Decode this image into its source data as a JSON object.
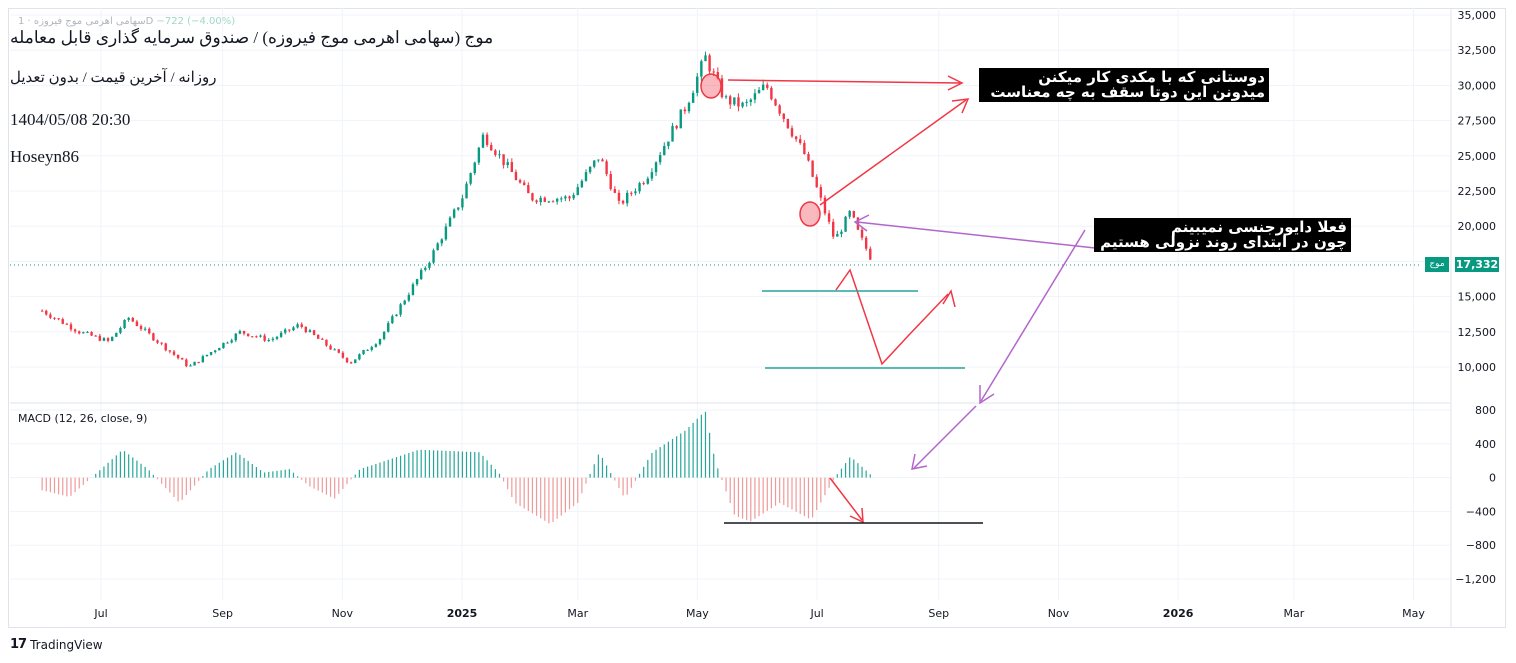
{
  "header": {
    "title": "موج (سهامی اهرمی موج فیروزه) / صندوق سرمایه گذاری قابل معامله",
    "subtitle": "روزانه / آخرین قیمت / بدون تعدیل",
    "datetime": "1404/05/08 20:30",
    "author": "Hoseyn86",
    "ghost_symbol": "سهامی اهرمی موج فیروزه · 1D",
    "ghost_change": "−722 (−4.00%)"
  },
  "annotations": {
    "note1_line1": "دوستانی که با مکدی کار میکنن",
    "note1_line2": "میدونن این دوتا سقف به چه معناست",
    "note2_line1": "فعلا دایورجنسی نمیبینم",
    "note2_line2": "چون در ابتدای روند نزولی هستیم"
  },
  "price_tag": {
    "symbol": "موج",
    "value": "17,332"
  },
  "macd_label": "MACD (12, 26, close, 9)",
  "brand": "TradingView",
  "colors": {
    "up": "#089981",
    "down": "#f23645",
    "arrow_red": "#f23645",
    "arrow_purple": "#b266cc",
    "level_green": "#26a69a"
  },
  "chart_data": [
    {
      "type": "candlestick",
      "title": "",
      "last_price": 17332,
      "y_ticks": [
        35000,
        32500,
        30000,
        27500,
        25000,
        22500,
        20000,
        17500,
        15000,
        12500,
        10000
      ],
      "y_tick_labels": [
        "35,000",
        "32,500",
        "30,000",
        "27,500",
        "25,000",
        "22,500",
        "20,000",
        "17,500",
        "15,000",
        "12,500",
        "10,000"
      ],
      "ylim": [
        6500,
        35000
      ],
      "x_labels": [
        "Jul",
        "Sep",
        "Nov",
        "2025",
        "Mar",
        "May",
        "Jul",
        "Sep",
        "Nov",
        "2026",
        "Mar",
        "May"
      ],
      "anchors": [
        [
          "2024-06-01",
          14000
        ],
        [
          "2024-06-20",
          12500
        ],
        [
          "2024-07-05",
          11800
        ],
        [
          "2024-07-15",
          13500
        ],
        [
          "2024-08-15",
          10000
        ],
        [
          "2024-09-10",
          12500
        ],
        [
          "2024-09-25",
          11900
        ],
        [
          "2024-10-10",
          13000
        ],
        [
          "2024-11-05",
          10300
        ],
        [
          "2024-11-20",
          12000
        ],
        [
          "2024-12-15",
          17500
        ],
        [
          "2025-01-01",
          22000
        ],
        [
          "2025-01-12",
          26500
        ],
        [
          "2025-02-05",
          22000
        ],
        [
          "2025-02-25",
          22000
        ],
        [
          "2025-03-12",
          25000
        ],
        [
          "2025-03-22",
          21500
        ],
        [
          "2025-04-05",
          23500
        ],
        [
          "2025-04-25",
          28500
        ],
        [
          "2025-05-05",
          32000
        ],
        [
          "2025-05-15",
          29000
        ],
        [
          "2025-05-25",
          28500
        ],
        [
          "2025-06-05",
          30000
        ],
        [
          "2025-06-25",
          25000
        ],
        [
          "2025-07-10",
          19000
        ],
        [
          "2025-07-18",
          21000
        ],
        [
          "2025-07-22",
          19500
        ],
        [
          "2025-07-30",
          17332
        ]
      ]
    },
    {
      "type": "histogram",
      "title": "MACD (12, 26, close, 9)",
      "y_ticks": [
        800,
        400,
        0,
        -400,
        -800,
        -1200
      ],
      "y_tick_labels": [
        "800",
        "400",
        "0",
        "−400",
        "−800",
        "−1,200"
      ],
      "ylim": [
        -1300,
        850
      ],
      "anchors": [
        [
          "2024-06-01",
          -150
        ],
        [
          "2024-06-15",
          -230
        ],
        [
          "2024-07-01",
          100
        ],
        [
          "2024-07-12",
          330
        ],
        [
          "2024-07-25",
          100
        ],
        [
          "2024-08-10",
          -300
        ],
        [
          "2024-08-25",
          100
        ],
        [
          "2024-09-08",
          300
        ],
        [
          "2024-09-22",
          60
        ],
        [
          "2024-10-05",
          100
        ],
        [
          "2024-10-15",
          -100
        ],
        [
          "2024-10-28",
          -250
        ],
        [
          "2024-11-10",
          100
        ],
        [
          "2024-12-10",
          330
        ],
        [
          "2025-01-10",
          300
        ],
        [
          "2025-01-20",
          50
        ],
        [
          "2025-01-28",
          -300
        ],
        [
          "2025-02-15",
          -550
        ],
        [
          "2025-03-01",
          -300
        ],
        [
          "2025-03-12",
          300
        ],
        [
          "2025-03-25",
          -250
        ],
        [
          "2025-04-08",
          300
        ],
        [
          "2025-04-25",
          560
        ],
        [
          "2025-05-05",
          790
        ],
        [
          "2025-05-10",
          200
        ],
        [
          "2025-05-20",
          -450
        ],
        [
          "2025-05-28",
          -520
        ],
        [
          "2025-06-12",
          -300
        ],
        [
          "2025-06-28",
          -500
        ],
        [
          "2025-07-10",
          0
        ],
        [
          "2025-07-18",
          250
        ],
        [
          "2025-07-30",
          0
        ]
      ]
    }
  ]
}
